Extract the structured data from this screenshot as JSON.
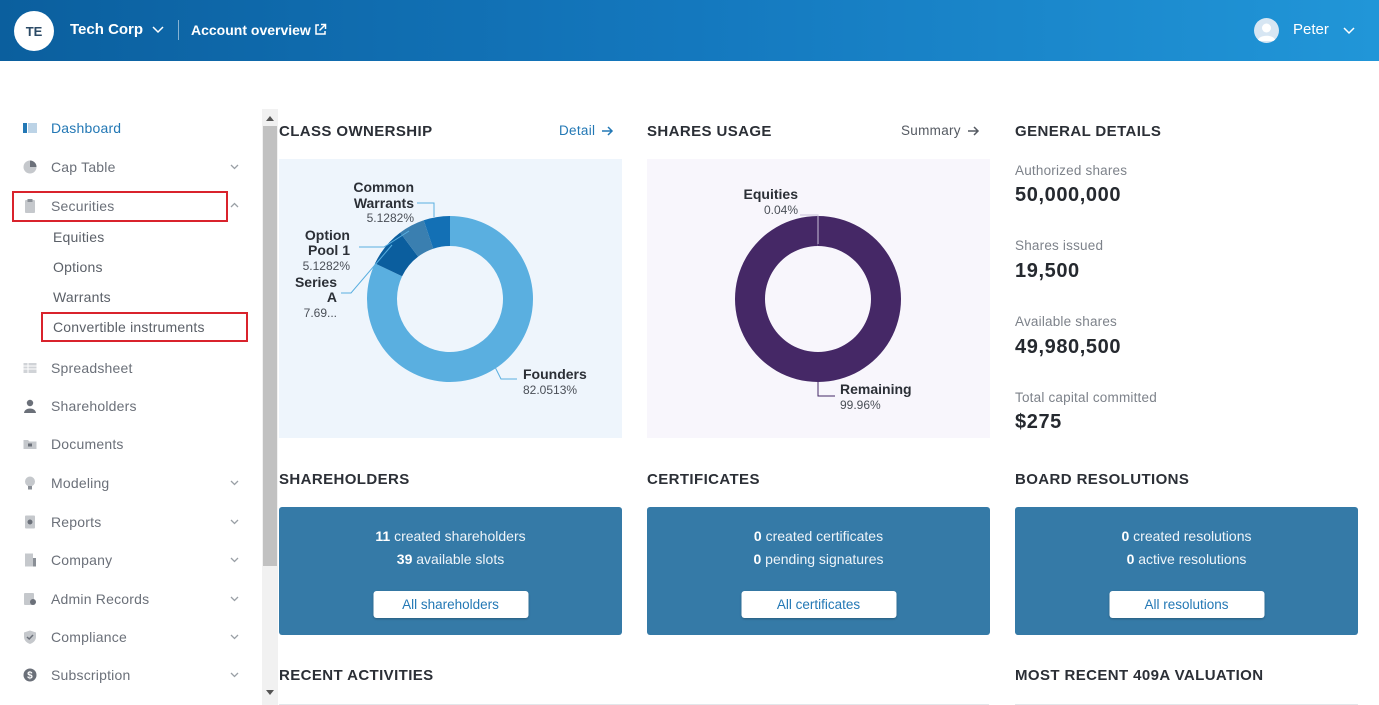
{
  "header": {
    "org_initials": "TE",
    "org_name": "Tech Corp",
    "account_link": "Account overview",
    "user_name": "Peter"
  },
  "sidebar": {
    "items": [
      {
        "label": "Dashboard",
        "icon": "dashboard-icon",
        "active": true
      },
      {
        "label": "Cap Table",
        "icon": "pie-chart-icon",
        "expandable": true
      },
      {
        "label": "Securities",
        "icon": "clipboard-icon",
        "expandable": true,
        "expanded": true
      },
      {
        "label": "Spreadsheet",
        "icon": "spreadsheet-icon"
      },
      {
        "label": "Shareholders",
        "icon": "person-icon"
      },
      {
        "label": "Documents",
        "icon": "folder-icon"
      },
      {
        "label": "Modeling",
        "icon": "lightbulb-icon",
        "expandable": true
      },
      {
        "label": "Reports",
        "icon": "report-icon",
        "expandable": true
      },
      {
        "label": "Company",
        "icon": "building-icon",
        "expandable": true
      },
      {
        "label": "Admin Records",
        "icon": "admin-records-icon",
        "expandable": true
      },
      {
        "label": "Compliance",
        "icon": "shield-check-icon",
        "expandable": true
      },
      {
        "label": "Subscription",
        "icon": "dollar-circle-icon",
        "expandable": true
      }
    ],
    "securities_sub": [
      "Equities",
      "Options",
      "Warrants",
      "Convertible instruments"
    ]
  },
  "class_ownership": {
    "title": "CLASS OWNERSHIP",
    "link": "Detail",
    "labels": {
      "common_warrants_1": "Common",
      "common_warrants_2": "Warrants",
      "common_warrants_pct": "5.1282%",
      "option_pool_1": "Option",
      "option_pool_2": "Pool 1",
      "option_pool_pct": "5.1282%",
      "series_a_1": "Series",
      "series_a_2": "A",
      "series_a_pct": "7.69...",
      "founders": "Founders",
      "founders_pct": "82.0513%"
    }
  },
  "shares_usage": {
    "title": "SHARES USAGE",
    "link": "Summary",
    "labels": {
      "equities": "Equities",
      "equities_pct": "0.04%",
      "remaining": "Remaining",
      "remaining_pct": "99.96%"
    }
  },
  "chart_data": [
    {
      "type": "pie",
      "title": "CLASS OWNERSHIP",
      "categories": [
        "Founders",
        "Series A",
        "Option Pool 1",
        "Common Warrants"
      ],
      "values": [
        82.0513,
        7.6923,
        5.1282,
        5.1282
      ],
      "colors": [
        "#5aafe0",
        "#0b5e9e",
        "#3a7fb0",
        "#1370b5"
      ]
    },
    {
      "type": "pie",
      "title": "SHARES USAGE",
      "categories": [
        "Remaining",
        "Equities"
      ],
      "values": [
        99.96,
        0.04
      ],
      "colors": [
        "#452866",
        "#6b4a8f"
      ]
    }
  ],
  "general_details": {
    "title": "GENERAL DETAILS",
    "items": [
      {
        "label": "Authorized shares",
        "value": "50,000,000"
      },
      {
        "label": "Shares issued",
        "value": "19,500"
      },
      {
        "label": "Available shares",
        "value": "49,980,500"
      },
      {
        "label": "Total capital committed",
        "value": "$275"
      }
    ]
  },
  "shareholders": {
    "title": "SHAREHOLDERS",
    "line1_num": "11",
    "line1_text": " created shareholders",
    "line2_num": "39",
    "line2_text": " available slots",
    "button": "All shareholders"
  },
  "certificates": {
    "title": "CERTIFICATES",
    "line1_num": "0",
    "line1_text": " created certificates",
    "line2_num": "0",
    "line2_text": " pending signatures",
    "button": "All certificates"
  },
  "board_resolutions": {
    "title": "BOARD RESOLUTIONS",
    "line1_num": "0",
    "line1_text": " created resolutions",
    "line2_num": "0",
    "line2_text": " active resolutions",
    "button": "All resolutions"
  },
  "recent_activities": {
    "title": "RECENT ACTIVITIES"
  },
  "valuation": {
    "title": "MOST RECENT 409A VALUATION"
  },
  "colors": {
    "accent": "#2378b5",
    "card": "#357aa7",
    "highlight": "#d9232c"
  }
}
